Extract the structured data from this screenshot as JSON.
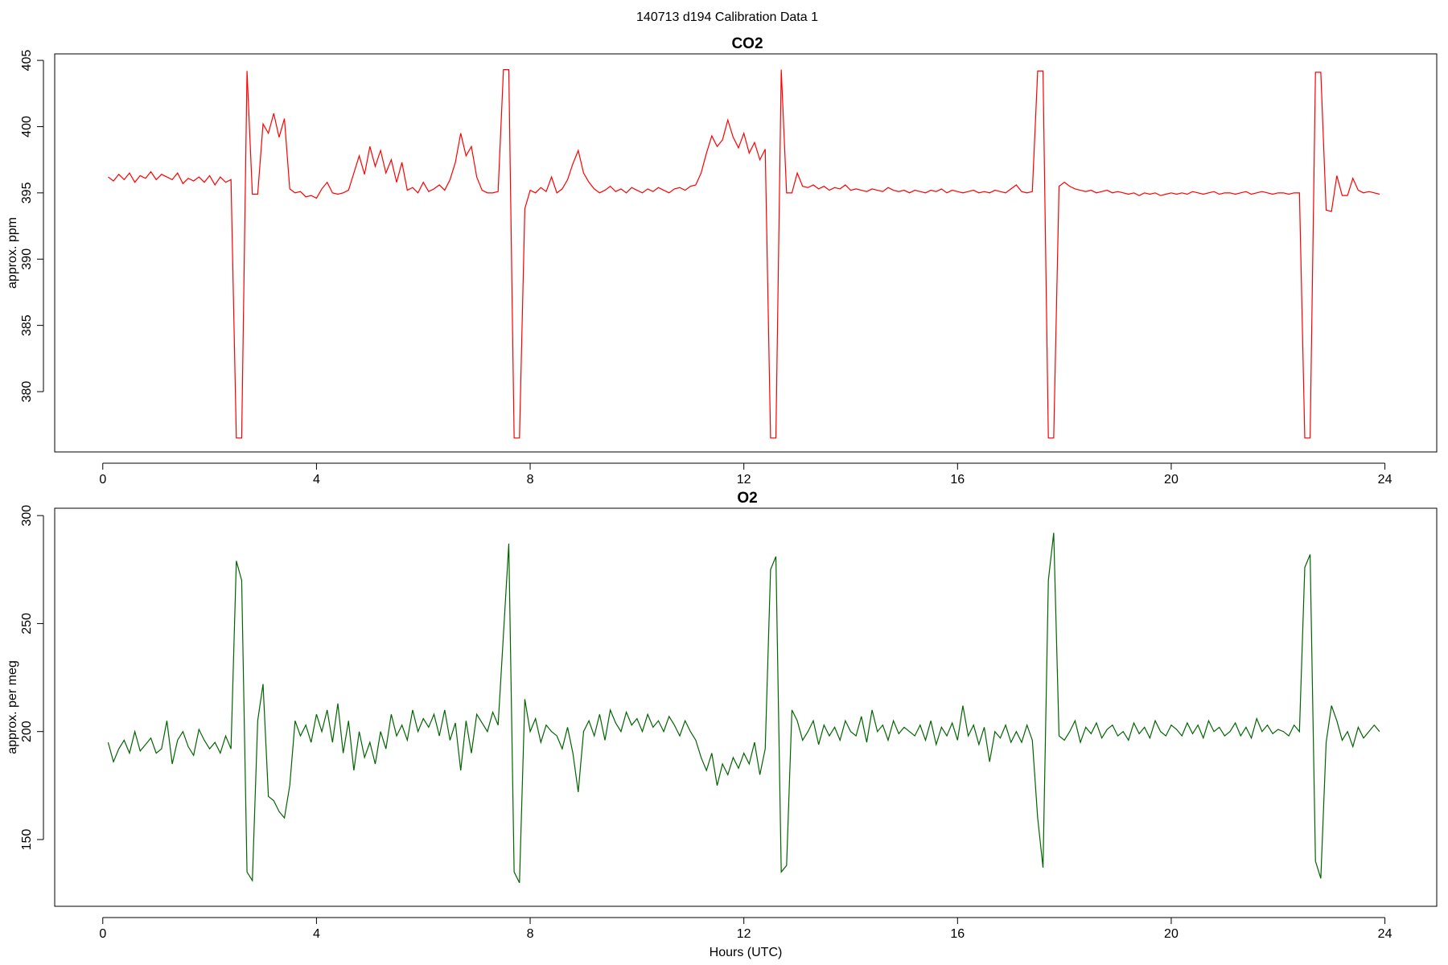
{
  "title": "140713   d194   Calibration Data 1",
  "chart_data": [
    {
      "type": "line",
      "title": "CO2",
      "ylabel": "approx. ppm",
      "color": "#ff0000",
      "xlim": [
        -0.9,
        24.97
      ],
      "xticks": [
        0,
        4,
        8,
        12,
        16,
        20,
        24
      ],
      "ylim": [
        375.45,
        405.49
      ],
      "yticks": [
        380,
        385,
        390,
        395,
        400,
        405
      ],
      "x": [
        0.1,
        0.2,
        0.3,
        0.4,
        0.5,
        0.6,
        0.7,
        0.8,
        0.9,
        1.0,
        1.1,
        1.2,
        1.3,
        1.4,
        1.5,
        1.6,
        1.7,
        1.8,
        1.9,
        2.0,
        2.1,
        2.2,
        2.3,
        2.4,
        2.5,
        2.6,
        2.7,
        2.8,
        2.9,
        3.0,
        3.1,
        3.2,
        3.3,
        3.4,
        3.5,
        3.6,
        3.7,
        3.8,
        3.9,
        4.0,
        4.1,
        4.2,
        4.3,
        4.4,
        4.5,
        4.6,
        4.7,
        4.8,
        4.9,
        5.0,
        5.1,
        5.2,
        5.3,
        5.4,
        5.5,
        5.6,
        5.7,
        5.8,
        5.9,
        6.0,
        6.1,
        6.2,
        6.3,
        6.4,
        6.5,
        6.6,
        6.7,
        6.8,
        6.9,
        7.0,
        7.1,
        7.2,
        7.3,
        7.4,
        7.5,
        7.6,
        7.7,
        7.8,
        7.9,
        8.0,
        8.1,
        8.2,
        8.3,
        8.4,
        8.5,
        8.6,
        8.7,
        8.8,
        8.9,
        9.0,
        9.1,
        9.2,
        9.3,
        9.4,
        9.5,
        9.6,
        9.7,
        9.8,
        9.9,
        10.0,
        10.1,
        10.2,
        10.3,
        10.4,
        10.5,
        10.6,
        10.7,
        10.8,
        10.9,
        11.0,
        11.1,
        11.2,
        11.3,
        11.4,
        11.5,
        11.6,
        11.7,
        11.8,
        11.9,
        12.0,
        12.1,
        12.2,
        12.3,
        12.4,
        12.5,
        12.6,
        12.7,
        12.8,
        12.9,
        13.0,
        13.1,
        13.2,
        13.3,
        13.4,
        13.5,
        13.6,
        13.7,
        13.8,
        13.9,
        14.0,
        14.1,
        14.2,
        14.3,
        14.4,
        14.5,
        14.6,
        14.7,
        14.8,
        14.9,
        15.0,
        15.1,
        15.2,
        15.3,
        15.4,
        15.5,
        15.6,
        15.7,
        15.8,
        15.9,
        16.0,
        16.1,
        16.2,
        16.3,
        16.4,
        16.5,
        16.6,
        16.7,
        16.8,
        16.9,
        17.0,
        17.1,
        17.2,
        17.3,
        17.4,
        17.5,
        17.6,
        17.7,
        17.8,
        17.9,
        18.0,
        18.1,
        18.2,
        18.3,
        18.4,
        18.5,
        18.6,
        18.7,
        18.8,
        18.9,
        19.0,
        19.1,
        19.2,
        19.3,
        19.4,
        19.5,
        19.6,
        19.7,
        19.8,
        19.9,
        20.0,
        20.1,
        20.2,
        20.3,
        20.4,
        20.5,
        20.6,
        20.7,
        20.8,
        20.9,
        21.0,
        21.1,
        21.2,
        21.3,
        21.4,
        21.5,
        21.6,
        21.7,
        21.8,
        21.9,
        22.0,
        22.1,
        22.2,
        22.3,
        22.4,
        22.5,
        22.6,
        22.7,
        22.8,
        22.9,
        23.0,
        23.1,
        23.2,
        23.3,
        23.4,
        23.5,
        23.6,
        23.7,
        23.8,
        23.9
      ],
      "values": [
        396.2,
        395.9,
        396.4,
        396.0,
        396.5,
        395.8,
        396.3,
        396.1,
        396.6,
        396.0,
        396.4,
        396.2,
        396.0,
        396.5,
        395.7,
        396.1,
        395.9,
        396.2,
        395.8,
        396.3,
        395.6,
        396.2,
        395.8,
        396.0,
        376.5,
        376.5,
        404.2,
        394.9,
        394.9,
        400.2,
        399.5,
        401.0,
        399.2,
        400.6,
        395.3,
        395.0,
        395.1,
        394.7,
        394.8,
        394.6,
        395.3,
        395.8,
        395.0,
        394.9,
        395.0,
        395.2,
        396.5,
        397.8,
        396.4,
        398.5,
        397.0,
        398.2,
        396.5,
        397.5,
        395.8,
        397.3,
        395.2,
        395.4,
        395.0,
        395.8,
        395.1,
        395.3,
        395.6,
        395.2,
        396.0,
        397.3,
        399.5,
        397.8,
        398.5,
        396.2,
        395.2,
        395.0,
        395.0,
        395.1,
        404.3,
        404.3,
        376.5,
        376.5,
        393.8,
        395.2,
        395.0,
        395.4,
        395.1,
        396.2,
        395.0,
        395.3,
        396.0,
        397.2,
        398.2,
        396.5,
        395.8,
        395.3,
        395.0,
        395.2,
        395.5,
        395.1,
        395.3,
        395.0,
        395.4,
        395.2,
        395.0,
        395.3,
        395.1,
        395.4,
        395.2,
        395.0,
        395.3,
        395.4,
        395.2,
        395.5,
        395.6,
        396.5,
        398.0,
        399.3,
        398.5,
        399.0,
        400.5,
        399.2,
        398.4,
        399.5,
        398.0,
        398.8,
        397.5,
        398.3,
        376.5,
        376.5,
        404.3,
        395.0,
        395.0,
        396.5,
        395.5,
        395.4,
        395.6,
        395.3,
        395.5,
        395.2,
        395.4,
        395.3,
        395.6,
        395.2,
        395.3,
        395.2,
        395.1,
        395.3,
        395.2,
        395.1,
        395.4,
        395.2,
        395.1,
        395.2,
        395.0,
        395.2,
        395.1,
        395.0,
        395.2,
        395.1,
        395.3,
        395.0,
        395.2,
        395.1,
        395.0,
        395.1,
        395.2,
        395.0,
        395.1,
        395.0,
        395.2,
        395.1,
        395.0,
        395.3,
        395.6,
        395.1,
        395.0,
        395.1,
        404.2,
        404.2,
        376.5,
        376.5,
        395.5,
        395.8,
        395.5,
        395.3,
        395.2,
        395.1,
        395.2,
        395.0,
        395.1,
        395.2,
        395.0,
        395.1,
        395.0,
        394.9,
        395.0,
        394.8,
        395.0,
        394.9,
        395.0,
        394.8,
        394.9,
        395.0,
        394.9,
        395.0,
        394.9,
        395.1,
        395.0,
        394.9,
        395.0,
        395.1,
        394.9,
        395.0,
        395.0,
        394.9,
        395.0,
        395.1,
        394.9,
        395.0,
        395.1,
        395.0,
        394.9,
        395.0,
        395.0,
        394.9,
        395.0,
        395.0,
        376.5,
        376.5,
        404.1,
        404.1,
        393.7,
        393.6,
        396.3,
        394.8,
        394.8,
        396.1,
        395.2,
        395.0,
        395.1,
        395.0,
        394.9
      ]
    },
    {
      "type": "line",
      "title": "O2",
      "ylabel": "approx. per meg",
      "xlabel": "Hours (UTC)",
      "color": "#006400",
      "xlim": [
        -0.9,
        24.97
      ],
      "xticks": [
        0,
        4,
        8,
        12,
        16,
        20,
        24
      ],
      "ylim": [
        119.1,
        303.4
      ],
      "yticks": [
        150,
        200,
        250,
        300
      ],
      "x": [
        0.1,
        0.2,
        0.3,
        0.4,
        0.5,
        0.6,
        0.7,
        0.8,
        0.9,
        1.0,
        1.1,
        1.2,
        1.3,
        1.4,
        1.5,
        1.6,
        1.7,
        1.8,
        1.9,
        2.0,
        2.1,
        2.2,
        2.3,
        2.4,
        2.5,
        2.6,
        2.7,
        2.8,
        2.9,
        3.0,
        3.1,
        3.2,
        3.3,
        3.4,
        3.5,
        3.6,
        3.7,
        3.8,
        3.9,
        4.0,
        4.1,
        4.2,
        4.3,
        4.4,
        4.5,
        4.6,
        4.7,
        4.8,
        4.9,
        5.0,
        5.1,
        5.2,
        5.3,
        5.4,
        5.5,
        5.6,
        5.7,
        5.8,
        5.9,
        6.0,
        6.1,
        6.2,
        6.3,
        6.4,
        6.5,
        6.6,
        6.7,
        6.8,
        6.9,
        7.0,
        7.1,
        7.2,
        7.3,
        7.4,
        7.5,
        7.6,
        7.7,
        7.8,
        7.9,
        8.0,
        8.1,
        8.2,
        8.3,
        8.4,
        8.5,
        8.6,
        8.7,
        8.8,
        8.9,
        9.0,
        9.1,
        9.2,
        9.3,
        9.4,
        9.5,
        9.6,
        9.7,
        9.8,
        9.9,
        10.0,
        10.1,
        10.2,
        10.3,
        10.4,
        10.5,
        10.6,
        10.7,
        10.8,
        10.9,
        11.0,
        11.1,
        11.2,
        11.3,
        11.4,
        11.5,
        11.6,
        11.7,
        11.8,
        11.9,
        12.0,
        12.1,
        12.2,
        12.3,
        12.4,
        12.5,
        12.6,
        12.7,
        12.8,
        12.9,
        13.0,
        13.1,
        13.2,
        13.3,
        13.4,
        13.5,
        13.6,
        13.7,
        13.8,
        13.9,
        14.0,
        14.1,
        14.2,
        14.3,
        14.4,
        14.5,
        14.6,
        14.7,
        14.8,
        14.9,
        15.0,
        15.1,
        15.2,
        15.3,
        15.4,
        15.5,
        15.6,
        15.7,
        15.8,
        15.9,
        16.0,
        16.1,
        16.2,
        16.3,
        16.4,
        16.5,
        16.6,
        16.7,
        16.8,
        16.9,
        17.0,
        17.1,
        17.2,
        17.3,
        17.4,
        17.5,
        17.6,
        17.7,
        17.8,
        17.9,
        18.0,
        18.1,
        18.2,
        18.3,
        18.4,
        18.5,
        18.6,
        18.7,
        18.8,
        18.9,
        19.0,
        19.1,
        19.2,
        19.3,
        19.4,
        19.5,
        19.6,
        19.7,
        19.8,
        19.9,
        20.0,
        20.1,
        20.2,
        20.3,
        20.4,
        20.5,
        20.6,
        20.7,
        20.8,
        20.9,
        21.0,
        21.1,
        21.2,
        21.3,
        21.4,
        21.5,
        21.6,
        21.7,
        21.8,
        21.9,
        22.0,
        22.1,
        22.2,
        22.3,
        22.4,
        22.5,
        22.6,
        22.7,
        22.8,
        22.9,
        23.0,
        23.1,
        23.2,
        23.3,
        23.4,
        23.5,
        23.6,
        23.7,
        23.8,
        23.9
      ],
      "values": [
        195,
        186,
        192,
        196,
        190,
        200,
        191,
        194,
        197,
        190,
        192,
        205,
        185,
        196,
        200,
        193,
        189,
        201,
        196,
        192,
        195,
        190,
        198,
        192,
        279,
        270,
        135,
        131,
        205,
        222,
        170,
        168,
        163,
        160,
        175,
        205,
        198,
        203,
        195,
        208,
        200,
        210,
        195,
        213,
        190,
        205,
        182,
        200,
        188,
        195,
        185,
        200,
        192,
        208,
        198,
        203,
        196,
        210,
        200,
        206,
        202,
        208,
        198,
        210,
        196,
        204,
        182,
        205,
        190,
        208,
        204,
        200,
        209,
        203,
        245,
        287,
        135,
        130,
        215,
        200,
        206,
        195,
        203,
        200,
        198,
        192,
        202,
        190,
        172,
        200,
        205,
        198,
        208,
        196,
        210,
        204,
        200,
        209,
        203,
        206,
        200,
        208,
        202,
        205,
        200,
        207,
        203,
        198,
        205,
        200,
        196,
        188,
        182,
        190,
        175,
        185,
        180,
        188,
        183,
        190,
        185,
        195,
        180,
        192,
        275,
        281,
        135,
        138,
        210,
        205,
        196,
        200,
        205,
        194,
        203,
        198,
        202,
        196,
        205,
        200,
        198,
        207,
        195,
        210,
        200,
        203,
        196,
        205,
        199,
        202,
        200,
        198,
        203,
        196,
        205,
        194,
        202,
        198,
        204,
        196,
        212,
        198,
        203,
        194,
        202,
        186,
        200,
        197,
        203,
        195,
        200,
        195,
        203,
        196,
        160,
        137,
        270,
        292,
        198,
        196,
        200,
        205,
        195,
        202,
        199,
        204,
        197,
        201,
        203,
        198,
        200,
        196,
        204,
        199,
        202,
        197,
        205,
        200,
        198,
        203,
        201,
        198,
        204,
        199,
        203,
        197,
        205,
        200,
        202,
        198,
        200,
        204,
        198,
        202,
        197,
        206,
        200,
        203,
        199,
        201,
        200,
        198,
        203,
        200,
        276,
        282,
        140,
        132,
        195,
        212,
        205,
        196,
        200,
        193,
        202,
        197,
        200,
        203,
        200
      ]
    }
  ]
}
